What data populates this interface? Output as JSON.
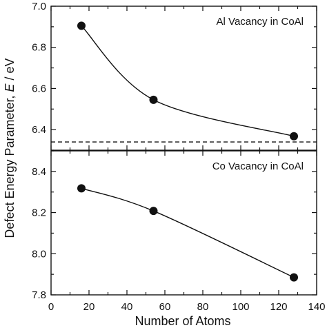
{
  "chart_data": {
    "type": "scatter",
    "shared_x": {
      "xlabel": "Number of Atoms",
      "xlim": [
        0,
        140
      ],
      "xticks": [
        0,
        20,
        40,
        60,
        80,
        100,
        120,
        140
      ]
    },
    "ylabel_prefix": "Defect Energy Parameter, ",
    "ylabel_symbol": "E",
    "ylabel_suffix": " / eV",
    "panels": [
      {
        "annotation": "Al Vacancy in CoAl",
        "x": [
          16,
          54,
          128
        ],
        "y": [
          6.905,
          6.545,
          6.368
        ],
        "ylim": [
          6.3,
          7.0
        ],
        "yticks": [
          6.4,
          6.6,
          6.8,
          7.0
        ],
        "ytick_labels": [
          "6.4",
          "6.6",
          "6.8",
          "7.0"
        ],
        "reference_line_y": 6.34,
        "reference_line_style": "dashed",
        "curve": "smooth",
        "grid": false,
        "marker_color": "#111111"
      },
      {
        "annotation": "Co Vacancy in CoAl",
        "x": [
          16,
          54,
          128
        ],
        "y": [
          8.318,
          8.208,
          7.885
        ],
        "ylim": [
          7.8,
          8.5
        ],
        "yticks": [
          7.8,
          8.0,
          8.2,
          8.4
        ],
        "ytick_labels": [
          "7.8",
          "8.0",
          "8.2",
          "8.4"
        ],
        "curve": "smooth",
        "grid": false,
        "marker_color": "#111111"
      }
    ]
  }
}
